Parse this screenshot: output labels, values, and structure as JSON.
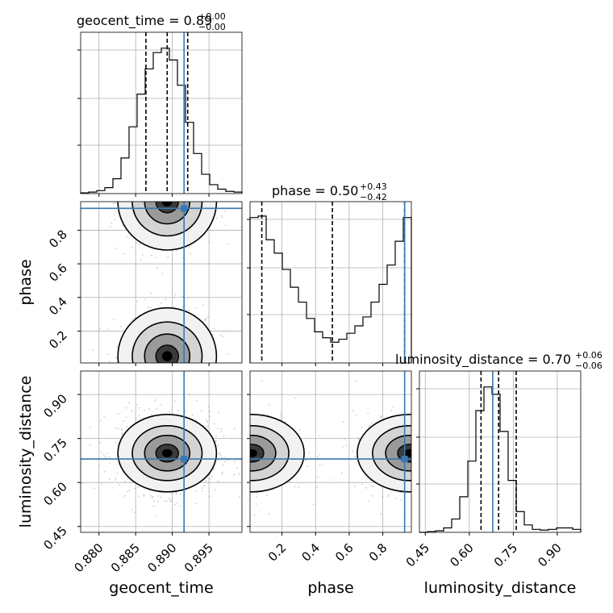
{
  "colors": {
    "truth": "#3778b4",
    "hist": "#000000",
    "grid": "#b0b0b0",
    "points": "#9a9a9a"
  },
  "chart_data": {
    "type": "corner",
    "parameters": [
      {
        "name": "geocent_time",
        "range": [
          0.8775,
          0.8995
        ],
        "ticks": [
          0.88,
          0.885,
          0.89,
          0.895
        ],
        "tick_labels": [
          "0.880",
          "0.885",
          "0.890",
          "0.895"
        ],
        "median": 0.8893,
        "q16": 0.8864,
        "q84": 0.8921,
        "truth": 0.8916,
        "title_value": "0.89",
        "title_plus": "+0.00",
        "title_minus": "−0.00"
      },
      {
        "name": "phase",
        "range": [
          0.01,
          0.97
        ],
        "ticks": [
          0.2,
          0.4,
          0.6,
          0.8
        ],
        "tick_labels": [
          "0.2",
          "0.4",
          "0.6",
          "0.8"
        ],
        "median": 0.5,
        "q16": 0.08,
        "q84": 0.93,
        "truth": 0.93,
        "title_value": "0.50",
        "title_plus": "+0.43",
        "title_minus": "−0.42"
      },
      {
        "name": "luminosity_distance",
        "range": [
          0.43,
          0.98
        ],
        "ticks": [
          0.45,
          0.6,
          0.75,
          0.9
        ],
        "tick_labels": [
          "0.45",
          "0.60",
          "0.75",
          "0.90"
        ],
        "median": 0.7,
        "q16": 0.64,
        "q84": 0.76,
        "truth": 0.68,
        "title_value": "0.70",
        "title_plus": "+0.06",
        "title_minus": "−0.06"
      }
    ],
    "hist_1d": {
      "geocent_time": [
        0.5,
        1,
        2,
        4,
        10,
        24,
        45,
        67,
        84,
        95,
        98,
        90,
        73,
        48,
        27,
        13,
        6,
        3,
        1.5,
        1
      ],
      "phase": [
        98,
        99,
        83,
        74,
        63,
        51,
        41,
        30,
        21,
        17,
        14,
        16,
        20,
        25,
        31,
        41,
        53,
        66,
        82,
        98
      ],
      "luminosity_distance": [
        0,
        0.5,
        1,
        3,
        9,
        24,
        48,
        82,
        98,
        93,
        68,
        35,
        14,
        5,
        2,
        1.5,
        2,
        3,
        3,
        2
      ]
    }
  }
}
